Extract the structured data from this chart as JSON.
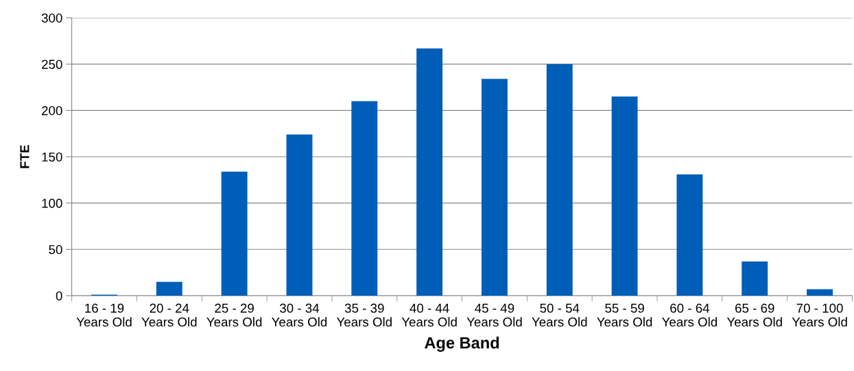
{
  "chart_data": {
    "type": "bar",
    "xlabel": "Age Band",
    "ylabel": "FTE",
    "categories": [
      "16 - 19\nYears Old",
      "20 - 24\nYears Old",
      "25 - 29\nYears Old",
      "30 - 34\nYears Old",
      "35 - 39\nYears Old",
      "40 - 44\nYears Old",
      "45 - 49\nYears Old",
      "50 - 54\nYears Old",
      "55 - 59\nYears Old",
      "60 - 64\nYears Old",
      "65 - 69\nYears Old",
      "70 - 100\nYears Old"
    ],
    "values": [
      1,
      15,
      134,
      174,
      210,
      267,
      234,
      250,
      215,
      131,
      37,
      7
    ],
    "color": "#005eb8",
    "ylim": [
      0,
      300
    ],
    "yticks": [
      0,
      50,
      100,
      150,
      200,
      250,
      300
    ],
    "grid": "y",
    "legend": false
  }
}
